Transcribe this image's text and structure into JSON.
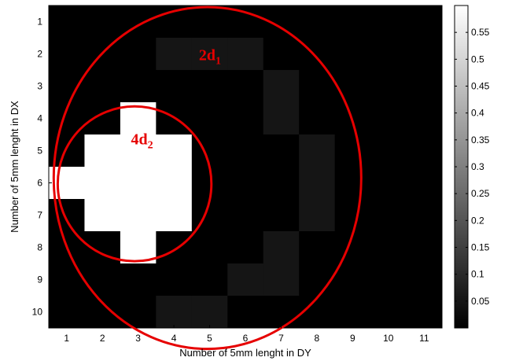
{
  "chart_data": {
    "type": "heatmap",
    "xlabel": "Number of 5mm lenght in DY",
    "ylabel": "Number of 5mm lenght in DX",
    "x_ticks": [
      "1",
      "2",
      "3",
      "4",
      "5",
      "6",
      "7",
      "8",
      "9",
      "10",
      "11"
    ],
    "y_ticks": [
      "1",
      "2",
      "3",
      "4",
      "5",
      "6",
      "7",
      "8",
      "9",
      "10"
    ],
    "grid": false,
    "colormap": "gray",
    "clim": [
      0,
      0.6
    ],
    "colorbar": {
      "position": "right",
      "ticks": [
        0.05,
        0.1,
        0.15,
        0.2,
        0.25,
        0.3,
        0.35,
        0.4,
        0.45,
        0.5,
        0.55
      ],
      "tick_labels": [
        "0.05",
        "0.1",
        "0.15",
        "0.2",
        "0.25",
        "0.3",
        "0.35",
        "0.4",
        "0.45",
        "0.5",
        "0.55"
      ]
    },
    "values": [
      [
        0,
        0,
        0,
        0,
        0,
        0,
        0,
        0,
        0,
        0,
        0
      ],
      [
        0,
        0,
        0,
        0.05,
        0.05,
        0.05,
        0,
        0,
        0,
        0,
        0
      ],
      [
        0,
        0,
        0,
        0,
        0,
        0,
        0.05,
        0,
        0,
        0,
        0
      ],
      [
        0,
        0,
        0.6,
        0,
        0,
        0,
        0.05,
        0,
        0,
        0,
        0
      ],
      [
        0,
        0.6,
        0.6,
        0.6,
        0,
        0,
        0,
        0.05,
        0,
        0,
        0
      ],
      [
        0.6,
        0.6,
        0.6,
        0.6,
        0,
        0,
        0,
        0.05,
        0,
        0,
        0
      ],
      [
        0,
        0.6,
        0.6,
        0.6,
        0,
        0,
        0,
        0.05,
        0,
        0,
        0
      ],
      [
        0,
        0,
        0.6,
        0,
        0,
        0,
        0.05,
        0,
        0,
        0,
        0
      ],
      [
        0,
        0,
        0,
        0,
        0,
        0.05,
        0.05,
        0,
        0,
        0,
        0
      ],
      [
        0,
        0,
        0,
        0.05,
        0.05,
        0,
        0,
        0,
        0,
        0,
        0
      ]
    ],
    "annotations": [
      {
        "base": "2d",
        "sub": "1",
        "x": 4.7,
        "y": 2.2
      },
      {
        "base": "4d",
        "sub": "2",
        "x": 2.8,
        "y": 4.8
      }
    ],
    "circles": [
      {
        "cx": 4.94,
        "cy": 5.85,
        "rx": 4.3,
        "ry": 5.3,
        "color": "#e60000"
      },
      {
        "cx": 2.9,
        "cy": 6.03,
        "rx": 2.15,
        "ry": 2.4,
        "color": "#e60000"
      }
    ]
  }
}
